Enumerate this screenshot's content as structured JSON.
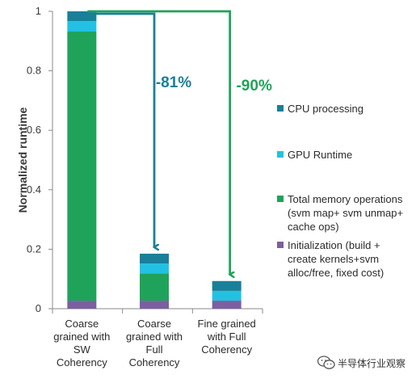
{
  "chart_data": {
    "type": "bar",
    "stacked": true,
    "categories": [
      "Coarse grained with SW Coherency",
      "Coarse grained with Full Coherency",
      "Fine grained with Full Coherency"
    ],
    "category_lines": [
      [
        "Coarse",
        "grained with",
        "SW",
        "Coherency"
      ],
      [
        "Coarse",
        "grained with",
        "Full",
        "Coherency"
      ],
      [
        "Fine grained",
        "with Full",
        "Coherency"
      ]
    ],
    "series": [
      {
        "name": "Initialization (build + create kernels+svm alloc/free, fixed cost)",
        "legend_lines": [
          "Initialization (build +",
          "create kernels+svm",
          "alloc/free, fixed cost)"
        ],
        "color": "#7b5fa0",
        "values": [
          0.027,
          0.027,
          0.027
        ]
      },
      {
        "name": "Total memory operations (svm map+ svm unmap+ cache ops)",
        "legend_lines": [
          "Total memory operations",
          "(svm map+ svm unmap+",
          "cache ops)"
        ],
        "color": "#1fa35a",
        "values": [
          0.905,
          0.092,
          0.0
        ]
      },
      {
        "name": "GPU Runtime",
        "legend_lines": [
          "GPU Runtime"
        ],
        "color": "#22c1e3",
        "values": [
          0.035,
          0.033,
          0.033
        ]
      },
      {
        "name": "CPU processing",
        "legend_lines": [
          "CPU processing"
        ],
        "color": "#1a7f99",
        "values": [
          0.033,
          0.033,
          0.033
        ]
      }
    ],
    "ylabel": "Normalized runtime",
    "ylim": [
      0,
      1
    ],
    "yticks": [
      "0",
      "0.2",
      "0.4",
      "0.6",
      "0.8",
      "1"
    ],
    "grid": false,
    "legend_position": "right",
    "annotations": [
      {
        "text": "-81%",
        "color": "#1a7f99",
        "from_category": 0,
        "to_category": 1
      },
      {
        "text": "-90%",
        "color": "#1fa35a",
        "from_category": 0,
        "to_category": 2
      }
    ]
  },
  "watermark": {
    "text": "半导体行业观察",
    "icon": "wechat-logo-icon"
  }
}
